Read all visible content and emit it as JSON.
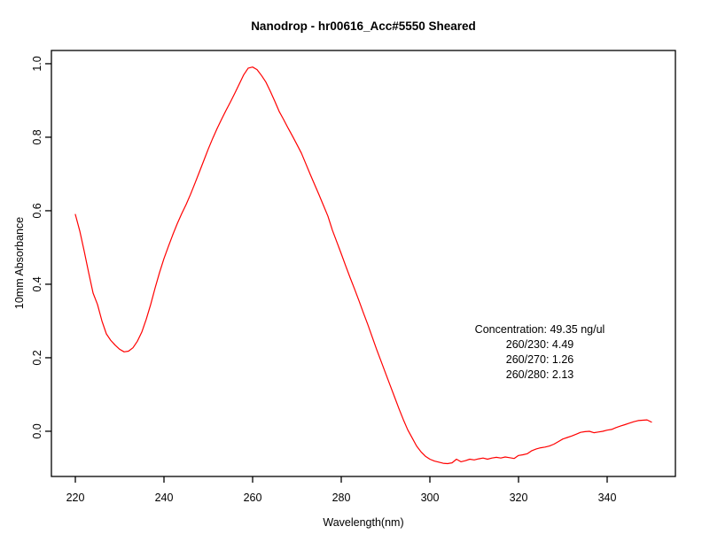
{
  "colors": {
    "line": "#ff0000",
    "axis": "#000000",
    "text": "#000000",
    "background": "#ffffff"
  },
  "chart_data": {
    "type": "line",
    "title": "Nanodrop - hr00616_Acc#5550 Sheared",
    "xlabel": "Wavelength(nm)",
    "ylabel": "10mm Absorbance",
    "grid": false,
    "legend": "none",
    "xlim": [
      214.6,
      355.4
    ],
    "ylim": [
      -0.123,
      1.036
    ],
    "x_ticks": [
      220,
      240,
      260,
      280,
      300,
      320,
      340
    ],
    "y_ticks": [
      0.0,
      0.2,
      0.4,
      0.6,
      0.8,
      1.0
    ],
    "y_tick_labels": [
      "0.0",
      "0.2",
      "0.4",
      "0.6",
      "0.8",
      "1.0"
    ],
    "annotation": {
      "lines": [
        "Concentration: 49.35 ng/ul",
        "260/230: 4.49",
        "260/270: 1.26",
        "260/280: 2.13"
      ],
      "anchor_x_nm": 325,
      "anchor_y_abs": 0.27
    },
    "series": [
      {
        "name": "10mm Absorbance",
        "color": "#ff0000",
        "x": [
          220,
          221,
          222,
          223,
          224,
          225,
          226,
          227,
          228,
          229,
          230,
          231,
          232,
          233,
          234,
          235,
          236,
          237,
          238,
          239,
          240,
          241,
          242,
          243,
          244,
          245,
          246,
          247,
          248,
          249,
          250,
          251,
          252,
          253,
          254,
          255,
          256,
          257,
          258,
          259,
          260,
          261,
          262,
          263,
          264,
          265,
          266,
          267,
          268,
          269,
          270,
          271,
          272,
          273,
          274,
          275,
          276,
          277,
          278,
          279,
          280,
          281,
          282,
          283,
          284,
          285,
          286,
          287,
          288,
          289,
          290,
          291,
          292,
          293,
          294,
          295,
          296,
          297,
          298,
          299,
          300,
          301,
          302,
          303,
          304,
          305,
          306,
          307,
          308,
          309,
          310,
          311,
          312,
          313,
          314,
          315,
          316,
          317,
          318,
          319,
          320,
          321,
          322,
          323,
          324,
          325,
          326,
          327,
          328,
          329,
          330,
          331,
          332,
          333,
          334,
          335,
          336,
          337,
          338,
          339,
          340,
          341,
          342,
          343,
          344,
          345,
          346,
          347,
          348,
          349,
          350
        ],
        "y": [
          0.59,
          0.545,
          0.49,
          0.432,
          0.376,
          0.345,
          0.3,
          0.265,
          0.247,
          0.234,
          0.223,
          0.216,
          0.218,
          0.227,
          0.245,
          0.27,
          0.305,
          0.345,
          0.39,
          0.432,
          0.47,
          0.503,
          0.535,
          0.565,
          0.592,
          0.617,
          0.645,
          0.675,
          0.706,
          0.737,
          0.768,
          0.797,
          0.824,
          0.849,
          0.873,
          0.896,
          0.92,
          0.945,
          0.97,
          0.988,
          0.991,
          0.984,
          0.968,
          0.95,
          0.925,
          0.898,
          0.87,
          0.848,
          0.825,
          0.803,
          0.78,
          0.757,
          0.728,
          0.699,
          0.671,
          0.643,
          0.614,
          0.585,
          0.547,
          0.515,
          0.483,
          0.45,
          0.418,
          0.387,
          0.355,
          0.322,
          0.29,
          0.256,
          0.222,
          0.19,
          0.158,
          0.126,
          0.094,
          0.062,
          0.032,
          0.004,
          -0.018,
          -0.04,
          -0.056,
          -0.068,
          -0.076,
          -0.081,
          -0.084,
          -0.087,
          -0.088,
          -0.086,
          -0.076,
          -0.083,
          -0.08,
          -0.076,
          -0.078,
          -0.075,
          -0.073,
          -0.076,
          -0.073,
          -0.071,
          -0.073,
          -0.07,
          -0.072,
          -0.074,
          -0.066,
          -0.064,
          -0.061,
          -0.053,
          -0.048,
          -0.045,
          -0.043,
          -0.04,
          -0.035,
          -0.028,
          -0.021,
          -0.017,
          -0.013,
          -0.008,
          -0.003,
          -0.001,
          0.0,
          -0.004,
          -0.002,
          0.0,
          0.003,
          0.005,
          0.01,
          0.014,
          0.018,
          0.022,
          0.026,
          0.029,
          0.03,
          0.031,
          0.025
        ]
      }
    ]
  }
}
